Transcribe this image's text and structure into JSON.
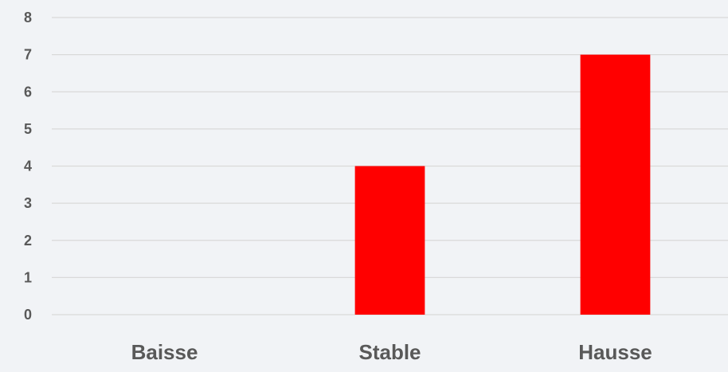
{
  "chart_data": {
    "type": "bar",
    "categories": [
      "Baisse",
      "Stable",
      "Hausse"
    ],
    "values": [
      0,
      4,
      7
    ],
    "title": "",
    "xlabel": "",
    "ylabel": "",
    "ylim": [
      0,
      8
    ],
    "yticks": [
      "0",
      "1",
      "2",
      "3",
      "4",
      "5",
      "6",
      "7",
      "8"
    ],
    "grid": true,
    "legend": "none",
    "colors": {
      "bar": "#ff0000",
      "grid": "#d9d9d9",
      "text": "#595959",
      "background": "#f1f3f6"
    }
  }
}
